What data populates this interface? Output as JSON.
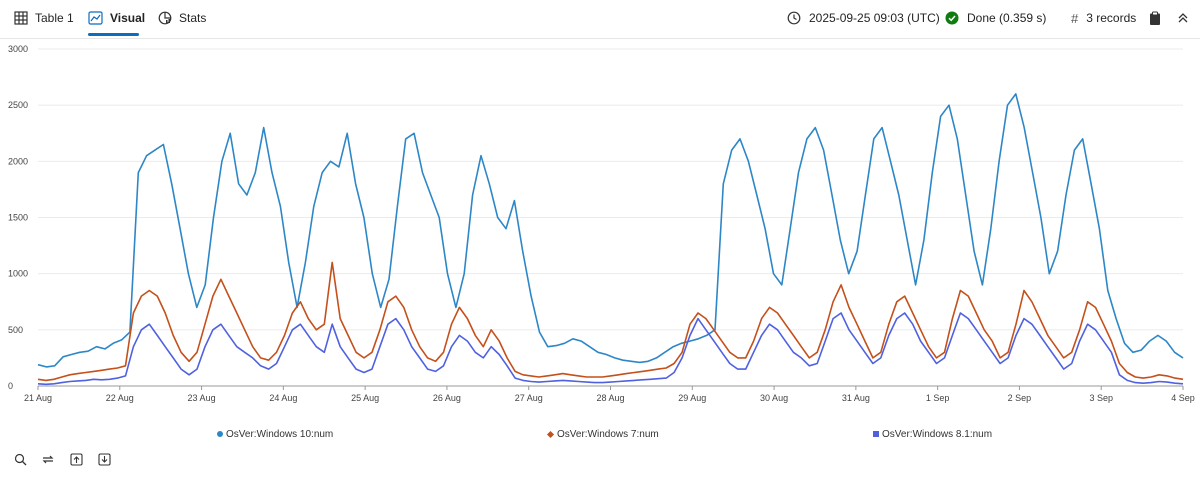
{
  "tabs": [
    {
      "label": "Table 1",
      "icon": "table-icon"
    },
    {
      "label": "Visual",
      "icon": "chart-visual-icon",
      "active": true
    },
    {
      "label": "Stats",
      "icon": "stats-pie-icon"
    }
  ],
  "status": {
    "timestamp": "2025-09-25 09:03 (UTC)",
    "done": "Done (0.359 s)",
    "records": "3 records"
  },
  "colors": {
    "accent": "#0f6cbd",
    "done": "#107c10"
  },
  "chart_data": {
    "type": "line",
    "x_labels": [
      "21 Aug",
      "22 Aug",
      "23 Aug",
      "24 Aug",
      "25 Aug",
      "26 Aug",
      "27 Aug",
      "28 Aug",
      "29 Aug",
      "30 Aug",
      "31 Aug",
      "1 Sep",
      "2 Sep",
      "3 Sep",
      "4 Sep"
    ],
    "y_ticks": [
      0,
      500,
      1000,
      1500,
      2000,
      2500,
      3000
    ],
    "ylim": [
      0,
      3000
    ],
    "grid": true,
    "legend_position": "bottom",
    "series": [
      {
        "name": "OsVer:Windows 10:num",
        "color": "#2d87c7",
        "marker": "circle",
        "values": [
          190,
          170,
          180,
          260,
          280,
          300,
          310,
          350,
          330,
          380,
          410,
          480,
          1900,
          2050,
          2100,
          2150,
          1800,
          1400,
          1000,
          700,
          900,
          1500,
          2000,
          2250,
          1800,
          1700,
          1900,
          2300,
          1900,
          1600,
          1100,
          700,
          1100,
          1600,
          1900,
          2000,
          1950,
          2250,
          1800,
          1500,
          1000,
          700,
          950,
          1600,
          2200,
          2250,
          1900,
          1700,
          1500,
          1000,
          700,
          1000,
          1700,
          2050,
          1800,
          1500,
          1400,
          1650,
          1200,
          800,
          480,
          350,
          360,
          380,
          420,
          400,
          350,
          300,
          280,
          250,
          230,
          220,
          210,
          220,
          250,
          300,
          350,
          380,
          400,
          420,
          450,
          500,
          1800,
          2100,
          2200,
          2000,
          1700,
          1400,
          1000,
          900,
          1400,
          1900,
          2200,
          2300,
          2100,
          1700,
          1300,
          1000,
          1200,
          1700,
          2200,
          2300,
          2000,
          1700,
          1300,
          900,
          1300,
          1900,
          2400,
          2500,
          2200,
          1700,
          1200,
          900,
          1400,
          2000,
          2500,
          2600,
          2300,
          1900,
          1500,
          1000,
          1200,
          1700,
          2100,
          2200,
          1800,
          1400,
          850,
          600,
          380,
          300,
          320,
          400,
          450,
          400,
          300,
          250
        ]
      },
      {
        "name": "OsVer:Windows 7:num",
        "color": "#c4501b",
        "marker": "diamond",
        "values": [
          60,
          50,
          60,
          80,
          100,
          110,
          120,
          130,
          140,
          150,
          160,
          180,
          650,
          800,
          850,
          800,
          650,
          450,
          300,
          220,
          300,
          550,
          800,
          950,
          800,
          650,
          500,
          350,
          250,
          230,
          300,
          450,
          650,
          750,
          600,
          500,
          550,
          1100,
          600,
          450,
          300,
          250,
          300,
          500,
          750,
          800,
          700,
          500,
          350,
          250,
          220,
          300,
          550,
          700,
          600,
          450,
          350,
          500,
          400,
          250,
          130,
          100,
          90,
          80,
          90,
          100,
          110,
          100,
          90,
          80,
          80,
          80,
          90,
          100,
          110,
          120,
          130,
          140,
          150,
          160,
          200,
          300,
          550,
          650,
          600,
          500,
          400,
          300,
          250,
          250,
          400,
          600,
          700,
          650,
          550,
          450,
          350,
          250,
          300,
          500,
          750,
          900,
          700,
          550,
          400,
          250,
          300,
          550,
          750,
          800,
          650,
          500,
          350,
          250,
          300,
          600,
          850,
          800,
          650,
          500,
          400,
          250,
          300,
          550,
          850,
          750,
          600,
          450,
          350,
          250,
          300,
          500,
          750,
          700,
          550,
          400,
          200,
          120,
          80,
          70,
          80,
          100,
          90,
          70,
          60
        ]
      },
      {
        "name": "OsVer:Windows 8.1:num",
        "color": "#4f61e0",
        "marker": "square",
        "values": [
          20,
          15,
          20,
          30,
          40,
          45,
          50,
          60,
          55,
          60,
          70,
          90,
          350,
          500,
          550,
          450,
          350,
          250,
          150,
          100,
          150,
          350,
          500,
          550,
          450,
          350,
          300,
          250,
          180,
          150,
          200,
          350,
          500,
          550,
          450,
          350,
          300,
          550,
          350,
          250,
          150,
          120,
          150,
          350,
          550,
          600,
          500,
          350,
          250,
          150,
          130,
          180,
          350,
          450,
          400,
          300,
          250,
          350,
          280,
          180,
          70,
          50,
          40,
          35,
          40,
          45,
          50,
          45,
          40,
          35,
          30,
          30,
          35,
          40,
          45,
          50,
          55,
          60,
          65,
          70,
          120,
          250,
          450,
          600,
          500,
          400,
          300,
          200,
          150,
          150,
          300,
          450,
          550,
          500,
          400,
          300,
          250,
          180,
          200,
          400,
          600,
          650,
          500,
          400,
          300,
          200,
          250,
          450,
          600,
          650,
          550,
          400,
          300,
          200,
          250,
          450,
          650,
          600,
          500,
          400,
          300,
          200,
          250,
          450,
          600,
          550,
          450,
          350,
          250,
          150,
          200,
          400,
          550,
          500,
          400,
          300,
          100,
          50,
          30,
          25,
          30,
          40,
          35,
          25,
          20
        ]
      }
    ]
  },
  "toolbar": [
    {
      "name": "search-button",
      "icon": "search-icon"
    },
    {
      "name": "refresh-button",
      "icon": "refresh-icon"
    },
    {
      "name": "export-button",
      "icon": "upload-icon"
    },
    {
      "name": "download-button",
      "icon": "download-icon"
    }
  ]
}
